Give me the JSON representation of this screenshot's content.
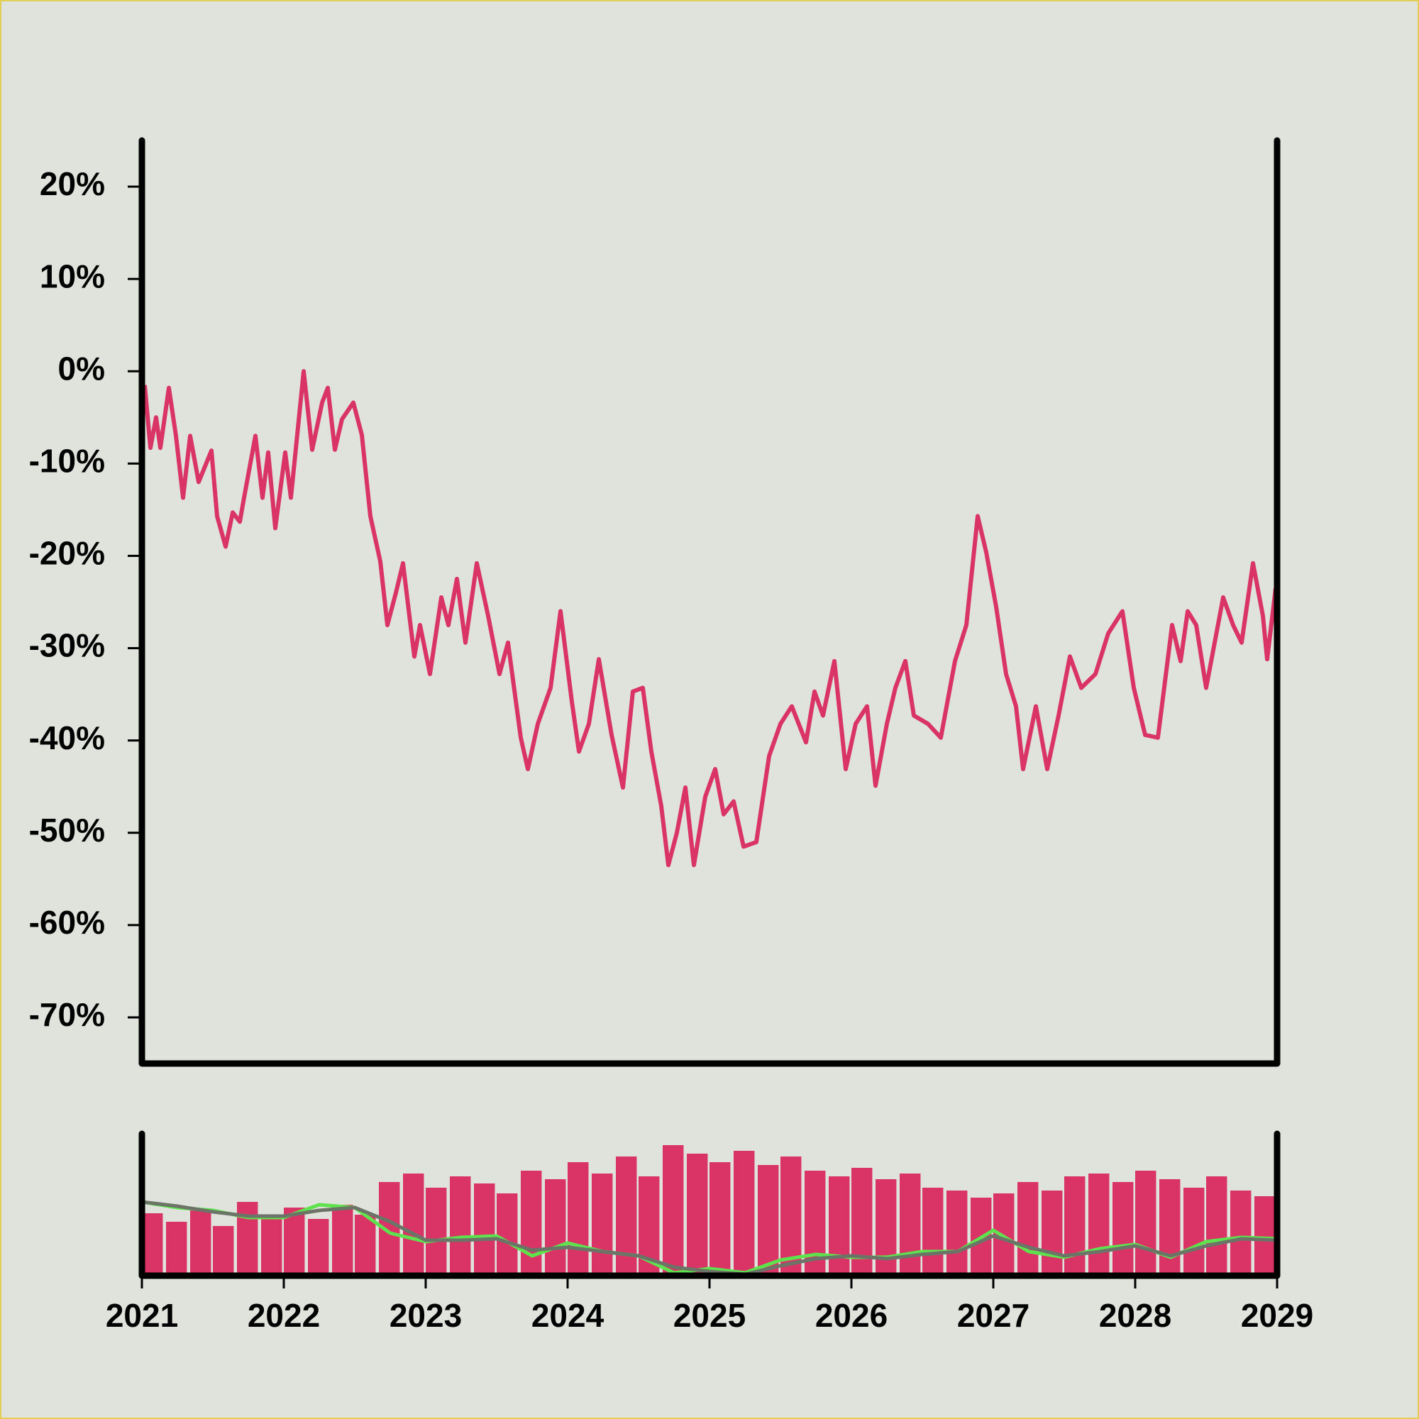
{
  "chart_data": [
    {
      "type": "line",
      "color": "#d93465",
      "x": [
        2021.02,
        2021.06,
        2021.1,
        2021.13,
        2021.19,
        2021.24,
        2021.29,
        2021.34,
        2021.4,
        2021.49,
        2021.53,
        2021.59,
        2021.64,
        2021.69,
        2021.72,
        2021.8,
        2021.85,
        2021.89,
        2021.94,
        2022.01,
        2022.05,
        2022.14,
        2022.2,
        2022.27,
        2022.31,
        2022.36,
        2022.41,
        2022.49,
        2022.55,
        2022.61,
        2022.68,
        2022.73,
        2022.79,
        2022.84,
        2022.92,
        2022.96,
        2023.03,
        2023.11,
        2023.16,
        2023.22,
        2023.28,
        2023.36,
        2023.44,
        2023.52,
        2023.58,
        2023.67,
        2023.72,
        2023.79,
        2023.88,
        2023.95,
        2024.03,
        2024.08,
        2024.15,
        2024.22,
        2024.31,
        2024.39,
        2024.46,
        2024.53,
        2024.59,
        2024.66,
        2024.71,
        2024.77,
        2024.83,
        2024.89,
        2024.97,
        2025.04,
        2025.1,
        2025.17,
        2025.24,
        2025.33,
        2025.42,
        2025.5,
        2025.58,
        2025.68,
        2025.74,
        2025.8,
        2025.88,
        2025.96,
        2026.03,
        2026.11,
        2026.17,
        2026.25,
        2026.31,
        2026.38,
        2026.44,
        2026.54,
        2026.63,
        2026.73,
        2026.81,
        2026.89,
        2026.95,
        2027.02,
        2027.09,
        2027.16,
        2027.21,
        2027.3,
        2027.38,
        2027.46,
        2027.54,
        2027.62,
        2027.72,
        2027.81,
        2027.91,
        2027.99,
        2028.07,
        2028.16,
        2028.26,
        2028.32,
        2028.37,
        2028.43,
        2028.5,
        2028.56,
        2028.62,
        2028.69,
        2028.75,
        2028.83,
        2028.9,
        2028.93,
        2028.99
      ],
      "values": [
        -1.5,
        -8.3,
        -5,
        -8.3,
        -1.8,
        -7,
        -13.7,
        -7,
        -12,
        -8.6,
        -15.7,
        -19,
        -15.3,
        -16.3,
        -13.7,
        -7,
        -13.7,
        -8.8,
        -17,
        -8.8,
        -13.7,
        0,
        -8.5,
        -3.4,
        -1.8,
        -8.5,
        -5.2,
        -3.4,
        -6.9,
        -15.7,
        -20.6,
        -27.5,
        -24,
        -20.8,
        -30.9,
        -27.5,
        -32.8,
        -24.5,
        -27.5,
        -22.5,
        -29.4,
        -20.8,
        -26.5,
        -32.8,
        -29.4,
        -39.7,
        -43.1,
        -38.2,
        -34.3,
        -26,
        -35.8,
        -41.2,
        -38.2,
        -31.2,
        -39.4,
        -45.1,
        -34.7,
        -34.3,
        -41.2,
        -47.1,
        -53.5,
        -50,
        -45.1,
        -53.5,
        -46.1,
        -43.1,
        -48,
        -46.6,
        -51.5,
        -51,
        -41.7,
        -38.2,
        -36.3,
        -40.2,
        -34.7,
        -37.3,
        -31.4,
        -43.1,
        -38.2,
        -36.3,
        -44.9,
        -38.2,
        -34.3,
        -31.4,
        -37.3,
        -38.2,
        -39.7,
        -31.4,
        -27.5,
        -15.7,
        -19.6,
        -25.5,
        -32.8,
        -36.3,
        -43.1,
        -36.3,
        -43.1,
        -37.3,
        -30.9,
        -34.3,
        -32.8,
        -28.4,
        -26,
        -34.3,
        -39.4,
        -39.7,
        -27.5,
        -31.4,
        -26,
        -27.5,
        -34.3,
        -29.4,
        -24.5,
        -27.5,
        -29.4,
        -20.8,
        -26.5,
        -31.2,
        -23.5
      ],
      "xlim": [
        2021,
        2029
      ],
      "ylim": [
        -75,
        25
      ],
      "yticks": [
        {
          "value": 20,
          "label": "20%"
        },
        {
          "value": 10,
          "label": "10%"
        },
        {
          "value": 0,
          "label": "0%"
        },
        {
          "value": -10,
          "label": "-10%"
        },
        {
          "value": -20,
          "label": "-20%"
        },
        {
          "value": -30,
          "label": "-30%"
        },
        {
          "value": -40,
          "label": "-40%"
        },
        {
          "value": -50,
          "label": "-50%"
        },
        {
          "value": -60,
          "label": "-60%"
        },
        {
          "value": -70,
          "label": "-70%"
        }
      ]
    },
    {
      "type": "bar",
      "color": "#d93465",
      "x": [
        2021.08,
        2021.25,
        2021.42,
        2021.58,
        2021.75,
        2021.92,
        2022.08,
        2022.25,
        2022.42,
        2022.58,
        2022.75,
        2022.92,
        2023.08,
        2023.25,
        2023.42,
        2023.58,
        2023.75,
        2023.92,
        2024.08,
        2024.25,
        2024.42,
        2024.58,
        2024.75,
        2024.92,
        2025.08,
        2025.25,
        2025.42,
        2025.58,
        2025.75,
        2025.92,
        2026.08,
        2026.25,
        2026.42,
        2026.58,
        2026.75,
        2026.92,
        2027.08,
        2027.25,
        2027.42,
        2027.58,
        2027.75,
        2027.92,
        2028.08,
        2028.25,
        2028.42,
        2028.58,
        2028.75,
        2028.92
      ],
      "values": [
        44,
        38,
        47,
        35,
        52,
        42,
        48,
        40,
        50,
        43,
        66,
        72,
        62,
        70,
        65,
        58,
        74,
        68,
        80,
        72,
        84,
        70,
        92,
        86,
        80,
        88,
        78,
        84,
        74,
        70,
        76,
        68,
        72,
        62,
        60,
        55,
        58,
        66,
        60,
        70,
        72,
        66,
        74,
        68,
        62,
        70,
        60,
        56
      ],
      "series": [
        {
          "color": "#5ee34e",
          "x": [
            2021,
            2021.25,
            2021.5,
            2021.75,
            2022,
            2022.25,
            2022.5,
            2022.75,
            2023,
            2023.25,
            2023.5,
            2023.75,
            2024,
            2024.25,
            2024.5,
            2024.75,
            2025,
            2025.25,
            2025.5,
            2025.75,
            2026,
            2026.25,
            2026.5,
            2026.75,
            2027,
            2027.25,
            2027.5,
            2027.75,
            2028,
            2028.25,
            2028.5,
            2028.75,
            2029
          ],
          "values": [
            52,
            48,
            46,
            41,
            41,
            50,
            48,
            30,
            24,
            27,
            28,
            14,
            23,
            17,
            14,
            2,
            5,
            2,
            11,
            15,
            13,
            13,
            17,
            17,
            32,
            17,
            13,
            19,
            22,
            13,
            24,
            27,
            26
          ]
        },
        {
          "color": "#6b7466",
          "x": [
            2021,
            2021.25,
            2021.5,
            2021.75,
            2022,
            2022.25,
            2022.5,
            2022.75,
            2023,
            2023.25,
            2023.5,
            2023.75,
            2024,
            2024.25,
            2024.5,
            2024.75,
            2025,
            2025.25,
            2025.5,
            2025.75,
            2026,
            2026.25,
            2026.5,
            2026.75,
            2027,
            2027.25,
            2027.5,
            2027.75,
            2028,
            2028.25,
            2028.5,
            2028.75,
            2029
          ],
          "values": [
            52,
            49,
            45,
            42,
            42,
            46,
            48,
            38,
            25,
            25,
            26,
            18,
            20,
            17,
            14,
            6,
            3,
            1,
            7,
            12,
            14,
            12,
            15,
            17,
            28,
            20,
            14,
            17,
            21,
            14,
            21,
            26,
            25
          ]
        }
      ],
      "xlim": [
        2021,
        2029
      ],
      "ylim": [
        0,
        100
      ],
      "xticks": [
        2021,
        2022,
        2023,
        2024,
        2025,
        2026,
        2027,
        2028,
        2029
      ]
    }
  ]
}
